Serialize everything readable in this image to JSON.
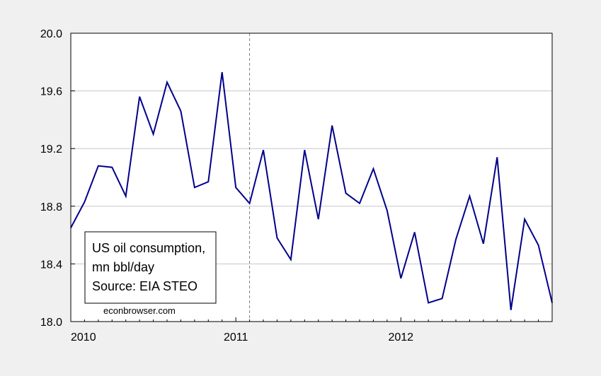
{
  "chart_data": {
    "type": "line",
    "x_start": "2010-01",
    "x": [
      "2010-01",
      "2010-02",
      "2010-03",
      "2010-04",
      "2010-05",
      "2010-06",
      "2010-07",
      "2010-08",
      "2010-09",
      "2010-10",
      "2010-11",
      "2010-12",
      "2011-01",
      "2011-02",
      "2011-03",
      "2011-04",
      "2011-05",
      "2011-06",
      "2011-07",
      "2011-08",
      "2011-09",
      "2011-10",
      "2011-11",
      "2011-12",
      "2012-01",
      "2012-02",
      "2012-03",
      "2012-04",
      "2012-05",
      "2012-06",
      "2012-07",
      "2012-08",
      "2012-09",
      "2012-10",
      "2012-11",
      "2012-12"
    ],
    "series": [
      {
        "name": "US oil consumption",
        "color": "#00008b",
        "values": [
          18.65,
          18.83,
          19.08,
          19.07,
          18.87,
          19.56,
          19.3,
          19.66,
          19.46,
          18.93,
          18.97,
          19.73,
          18.93,
          18.82,
          19.19,
          18.58,
          18.43,
          19.19,
          18.71,
          19.36,
          18.89,
          18.82,
          19.06,
          18.77,
          18.3,
          18.62,
          18.13,
          18.16,
          18.57,
          18.87,
          18.54,
          19.14,
          18.08,
          18.71,
          18.53,
          18.13
        ]
      }
    ],
    "ylim": [
      18.0,
      20.0
    ],
    "yticks": [
      "18.0",
      "18.4",
      "18.8",
      "19.2",
      "19.6",
      "20.0"
    ],
    "yticks_values": [
      18.0,
      18.4,
      18.8,
      19.2,
      19.6,
      20.0
    ],
    "xticks": [
      {
        "label": "2010",
        "month_index": 0
      },
      {
        "label": "2011",
        "month_index": 12
      },
      {
        "label": "2012",
        "month_index": 24
      }
    ],
    "vertical_marker": {
      "month_index": 13,
      "style": "dashed",
      "color": "#808080"
    },
    "grid": "horizontal",
    "legend": {
      "placement": "bottom-left",
      "lines": [
        "US oil consumption,",
        "mn bbl/day",
        "Source: EIA STEO"
      ]
    },
    "watermark": "econbrowser.com",
    "title": "",
    "xlabel": "",
    "ylabel": ""
  }
}
